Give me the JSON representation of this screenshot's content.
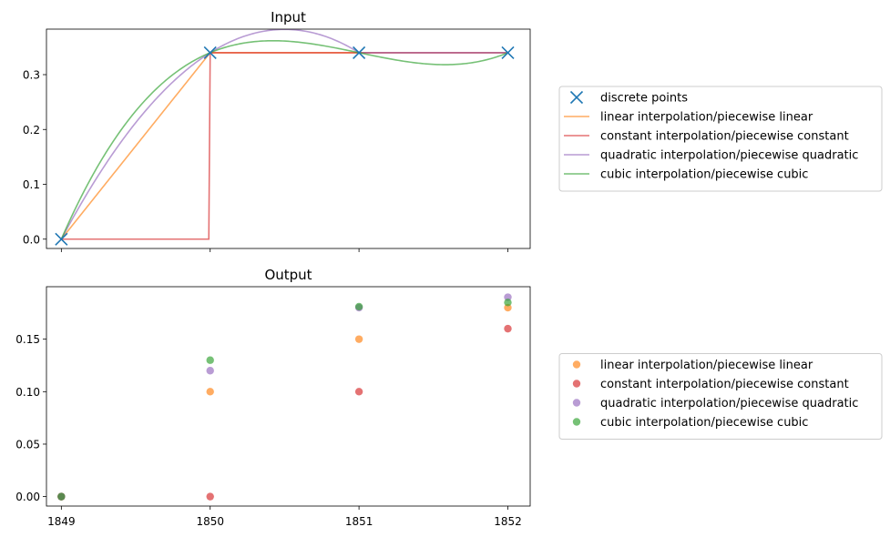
{
  "chart_data": [
    {
      "type": "line",
      "title": "Input",
      "xlabel": "",
      "ylabel": "",
      "xlim": [
        1848.9,
        1852.15
      ],
      "ylim": [
        -0.017,
        0.383
      ],
      "x_ticks": [
        1849,
        1850,
        1851,
        1852
      ],
      "x_tick_labels_visible": false,
      "y_ticks": [
        0.0,
        0.1,
        0.2,
        0.3
      ],
      "y_tick_labels": [
        "0.0",
        "0.1",
        "0.2",
        "0.3"
      ],
      "grid": false,
      "legend_placement": "outside-right",
      "points": {
        "name": "discrete points",
        "marker": "x",
        "color": "#1f77b4",
        "x": [
          1849,
          1850,
          1851,
          1852
        ],
        "y": [
          0.0,
          0.34,
          0.34,
          0.34
        ]
      },
      "series": [
        {
          "name": "linear interpolation/piecewise linear",
          "kind": "linear",
          "color": "#ff7f0e"
        },
        {
          "name": "constant interpolation/piecewise constant",
          "kind": "constant",
          "color": "#d62728"
        },
        {
          "name": "quadratic interpolation/piecewise quadratic",
          "kind": "quadratic",
          "color": "#9467bd"
        },
        {
          "name": "cubic interpolation/piecewise cubic",
          "kind": "cubic",
          "color": "#2ca02c"
        }
      ]
    },
    {
      "type": "scatter",
      "title": "Output",
      "xlabel": "",
      "ylabel": "",
      "xlim": [
        1848.9,
        1852.15
      ],
      "ylim": [
        -0.009,
        0.2
      ],
      "x_ticks": [
        1849,
        1850,
        1851,
        1852
      ],
      "x_tick_labels": [
        "1849",
        "1850",
        "1851",
        "1852"
      ],
      "y_ticks": [
        0.0,
        0.05,
        0.1,
        0.15
      ],
      "y_tick_labels": [
        "0.00",
        "0.05",
        "0.10",
        "0.15"
      ],
      "grid": false,
      "legend_placement": "outside-right",
      "series": [
        {
          "name": "linear interpolation/piecewise linear",
          "color": "#ff7f0e",
          "x": [
            1849,
            1850,
            1851,
            1852
          ],
          "y": [
            0.0,
            0.1,
            0.15,
            0.18
          ]
        },
        {
          "name": "constant interpolation/piecewise constant",
          "color": "#d62728",
          "x": [
            1849,
            1850,
            1851,
            1852
          ],
          "y": [
            0.0,
            0.0,
            0.1,
            0.16
          ]
        },
        {
          "name": "quadratic interpolation/piecewise quadratic",
          "color": "#9467bd",
          "x": [
            1849,
            1850,
            1851,
            1852
          ],
          "y": [
            0.0,
            0.12,
            0.18,
            0.19
          ]
        },
        {
          "name": "cubic interpolation/piecewise cubic",
          "color": "#2ca02c",
          "x": [
            1849,
            1850,
            1851,
            1852
          ],
          "y": [
            0.0,
            0.13,
            0.181,
            0.185
          ]
        }
      ]
    }
  ]
}
